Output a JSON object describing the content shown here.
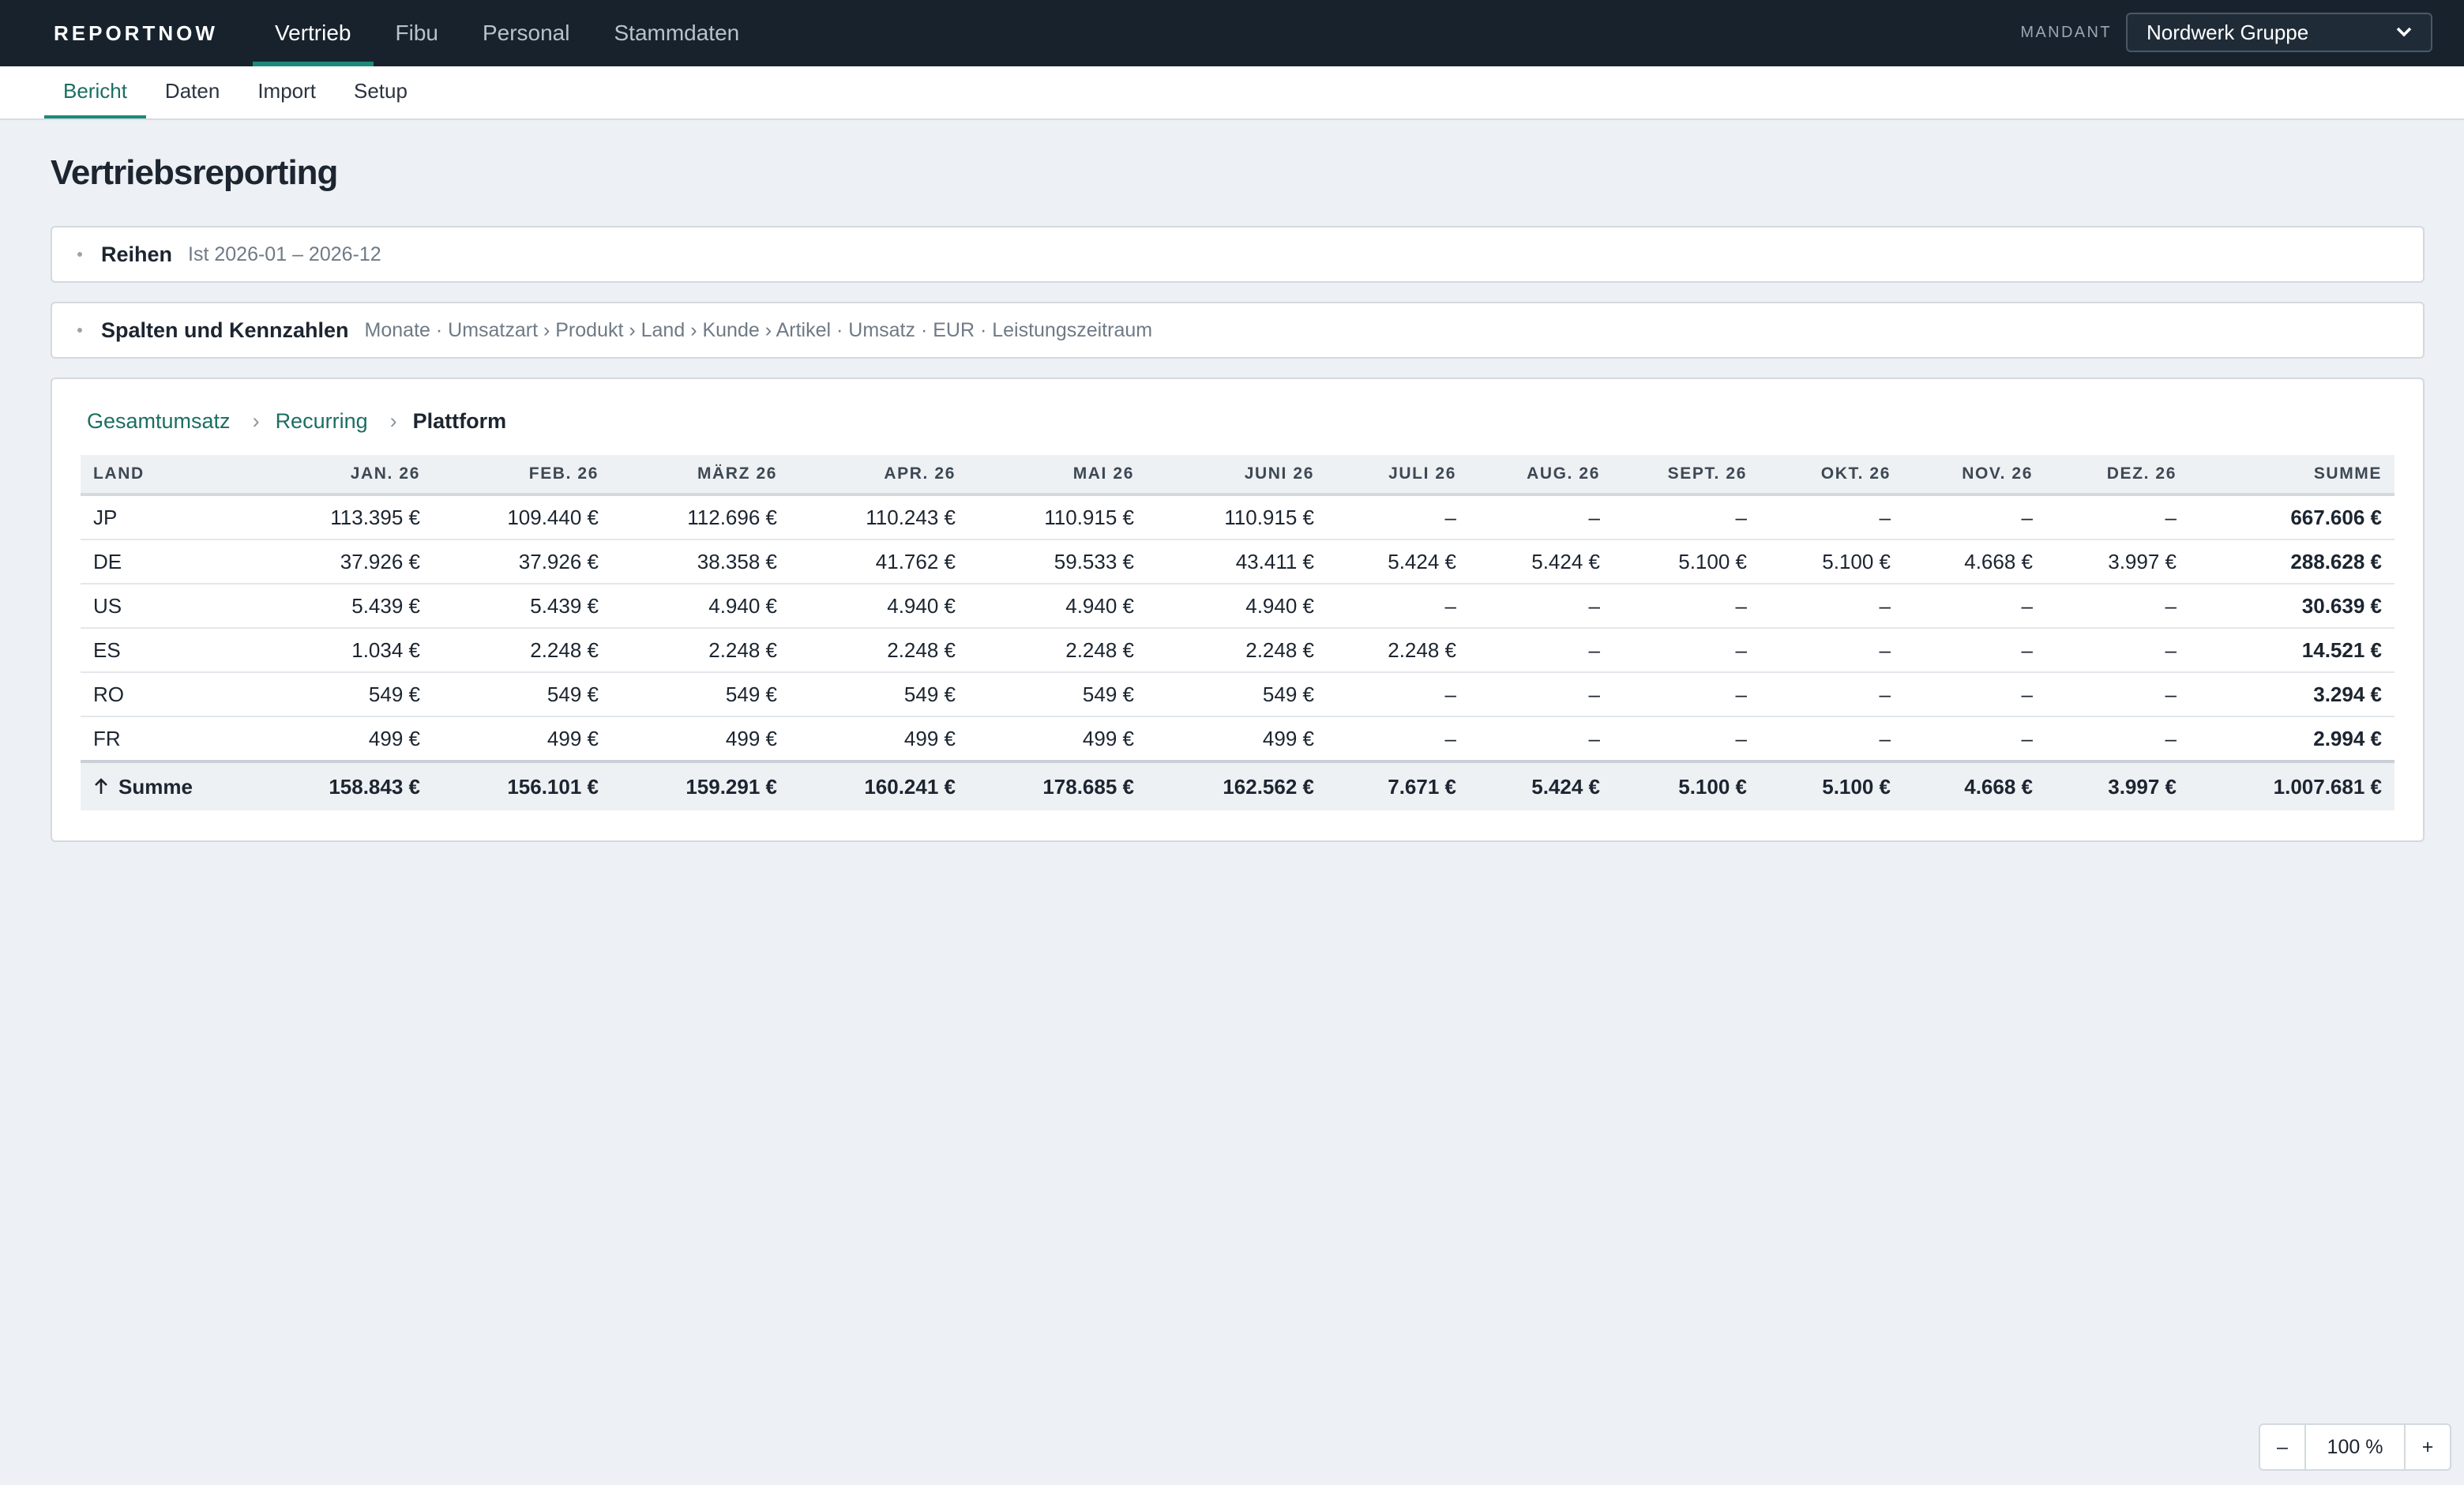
{
  "header": {
    "brand": "REPORTNOW",
    "tabs": [
      "Vertrieb",
      "Fibu",
      "Personal",
      "Stammdaten"
    ],
    "active_tab": 0,
    "client_label": "MANDANT",
    "client": "Nordwerk Gruppe"
  },
  "subnav": {
    "tabs": [
      "Bericht",
      "Daten",
      "Import",
      "Setup"
    ],
    "active_tab": 0
  },
  "title": "Vertriebsreporting",
  "filters": [
    {
      "label": "Reihen",
      "value": "Ist 2026-01 – 2026-12"
    },
    {
      "label": "Spalten und Kennzahlen",
      "value": "Monate · Umsatzart › Produkt › Land › Kunde › Artikel · Umsatz · EUR · Leistungszeitraum"
    }
  ],
  "breadcrumb": [
    "Gesamtumsatz",
    "Recurring",
    "Plattform"
  ],
  "table": {
    "header": [
      "LAND",
      "JAN. 26",
      "FEB. 26",
      "MÄRZ 26",
      "APR. 26",
      "MAI 26",
      "JUNI 26",
      "JULI 26",
      "AUG. 26",
      "SEPT. 26",
      "OKT. 26",
      "NOV. 26",
      "DEZ. 26",
      "SUMME"
    ],
    "rows": [
      [
        "JP",
        "113.395 €",
        "109.440 €",
        "112.696 €",
        "110.243 €",
        "110.915 €",
        "110.915 €",
        "–",
        "–",
        "–",
        "–",
        "–",
        "–",
        "667.606 €"
      ],
      [
        "DE",
        "37.926 €",
        "37.926 €",
        "38.358 €",
        "41.762 €",
        "59.533 €",
        "43.411 €",
        "5.424 €",
        "5.424 €",
        "5.100 €",
        "5.100 €",
        "4.668 €",
        "3.997 €",
        "288.628 €"
      ],
      [
        "US",
        "5.439 €",
        "5.439 €",
        "4.940 €",
        "4.940 €",
        "4.940 €",
        "4.940 €",
        "–",
        "–",
        "–",
        "–",
        "–",
        "–",
        "30.639 €"
      ],
      [
        "ES",
        "1.034 €",
        "2.248 €",
        "2.248 €",
        "2.248 €",
        "2.248 €",
        "2.248 €",
        "2.248 €",
        "–",
        "–",
        "–",
        "–",
        "–",
        "14.521 €"
      ],
      [
        "RO",
        "549 €",
        "549 €",
        "549 €",
        "549 €",
        "549 €",
        "549 €",
        "–",
        "–",
        "–",
        "–",
        "–",
        "–",
        "3.294 €"
      ],
      [
        "FR",
        "499 €",
        "499 €",
        "499 €",
        "499 €",
        "499 €",
        "499 €",
        "–",
        "–",
        "–",
        "–",
        "–",
        "–",
        "2.994 €"
      ]
    ],
    "total": [
      "Summe",
      "158.843 €",
      "156.101 €",
      "159.291 €",
      "160.241 €",
      "178.685 €",
      "162.562 €",
      "7.671 €",
      "5.424 €",
      "5.100 €",
      "5.100 €",
      "4.668 €",
      "3.997 €",
      "1.007.681 €"
    ]
  },
  "zoom": {
    "minus": "–",
    "level": "100 %",
    "plus": "+"
  }
}
